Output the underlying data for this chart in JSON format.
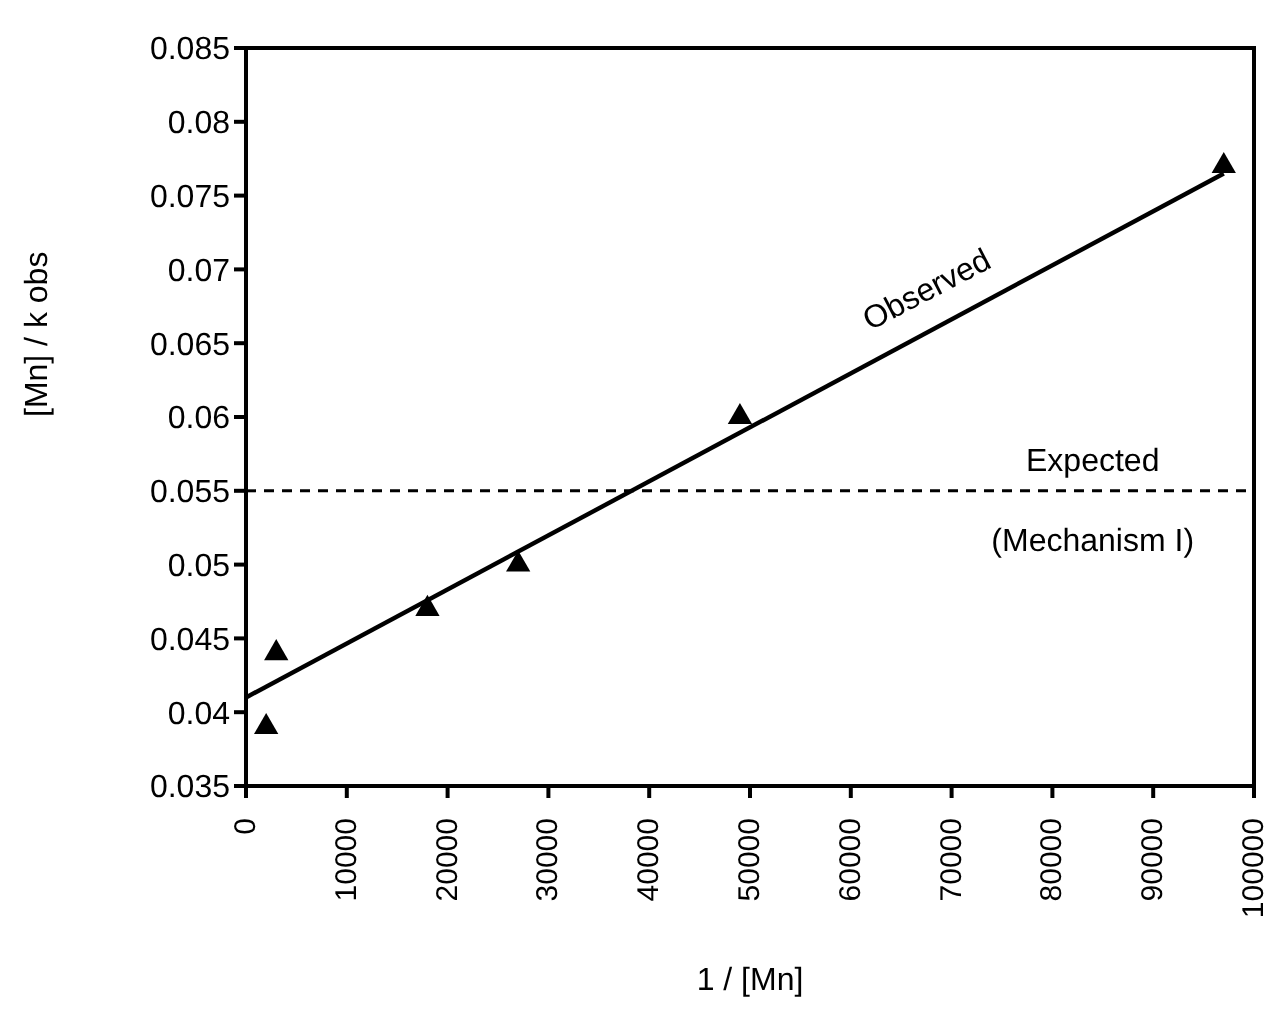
{
  "chart_data": {
    "type": "scatter",
    "xlabel": "1 / [Mn]",
    "ylabel": "[Mn] / k obs",
    "x": [
      2000,
      3000,
      18000,
      27000,
      49000,
      97000
    ],
    "series": [
      {
        "color": "#000000",
        "marker": "triangle",
        "values": [
          0.039,
          0.044,
          0.047,
          0.05,
          0.06,
          0.077
        ]
      },
      {
        "type": "line",
        "color": "#000000",
        "marker": "none",
        "line_style": "solid",
        "x": [
          0,
          97000
        ],
        "values": [
          0.041,
          0.0765
        ]
      }
    ],
    "xlim": [
      0,
      100000
    ],
    "xticks": [
      0,
      10000,
      20000,
      30000,
      40000,
      50000,
      60000,
      70000,
      80000,
      90000,
      100000
    ],
    "ylim": [
      0.035,
      0.085
    ],
    "yticks": [
      0.035,
      0.04,
      0.045,
      0.05,
      0.055,
      0.06,
      0.065,
      0.07,
      0.075,
      0.08,
      0.085
    ],
    "ref_lines": [
      {
        "axis": "y",
        "value": 0.055,
        "line_style": "dashed",
        "color": "#000000"
      }
    ],
    "annotations": [
      "Observed",
      "Expected",
      "(Mechanism I)"
    ]
  }
}
